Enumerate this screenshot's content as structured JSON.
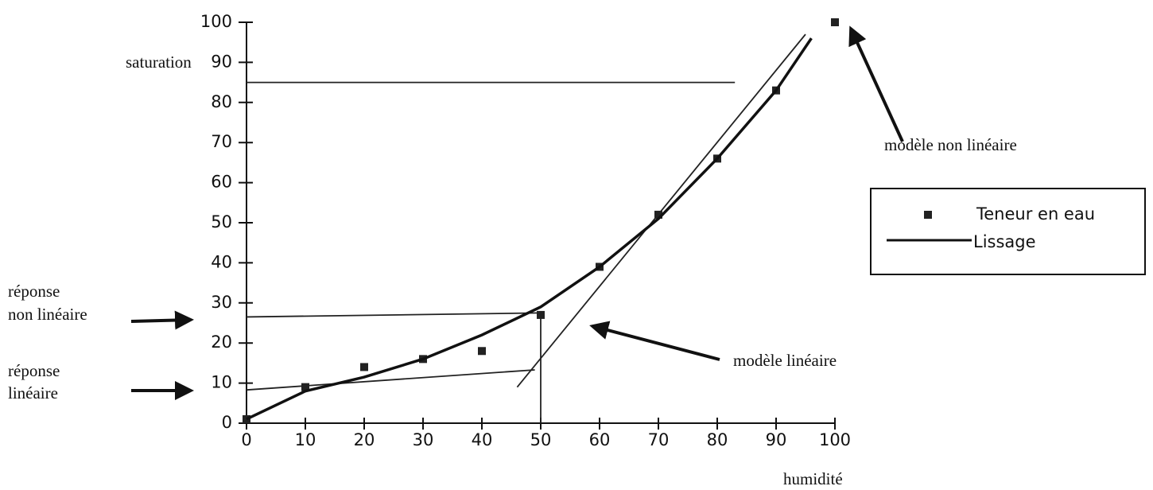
{
  "chart_data": {
    "type": "scatter",
    "xlabel": "humidité",
    "ylabel": "saturation",
    "xlim": [
      0,
      100
    ],
    "ylim": [
      0,
      100
    ],
    "xticks": [
      0,
      10,
      20,
      30,
      40,
      50,
      60,
      70,
      80,
      90,
      100
    ],
    "yticks": [
      0,
      10,
      20,
      30,
      40,
      50,
      60,
      70,
      80,
      90,
      100
    ],
    "series": [
      {
        "name": "Teneur en eau",
        "type": "scatter",
        "color": "#222222",
        "x": [
          0,
          10,
          20,
          30,
          40,
          50,
          60,
          70,
          80,
          90,
          100
        ],
        "values": [
          1,
          9,
          14,
          16,
          18,
          27,
          39,
          52,
          66,
          83,
          100
        ]
      },
      {
        "name": "Lissage",
        "type": "line",
        "color": "#111111",
        "x": [
          0,
          10,
          20,
          30,
          40,
          50,
          60,
          70,
          80,
          90,
          96
        ],
        "values": [
          1,
          8,
          11.5,
          16,
          22,
          29,
          39,
          51,
          66,
          83,
          96
        ]
      }
    ],
    "reference_lines": [
      {
        "x": [
          46,
          95
        ],
        "values": [
          9,
          97
        ]
      },
      {
        "x": [
          0,
          83
        ],
        "values": [
          85,
          85
        ]
      },
      {
        "x": [
          0,
          50
        ],
        "values": [
          26.5,
          27.5
        ]
      },
      {
        "x": [
          0,
          49
        ],
        "values": [
          8.3,
          13.3
        ]
      },
      {
        "x": [
          50,
          50
        ],
        "values": [
          27.5,
          0
        ]
      }
    ],
    "annotations": {
      "nonlinear_model": "modèle non linéaire",
      "linear_model": "modèle linéaire",
      "nonlinear_response": [
        "réponse",
        "non linéaire"
      ],
      "linear_response": [
        "réponse",
        "linéaire"
      ]
    }
  }
}
